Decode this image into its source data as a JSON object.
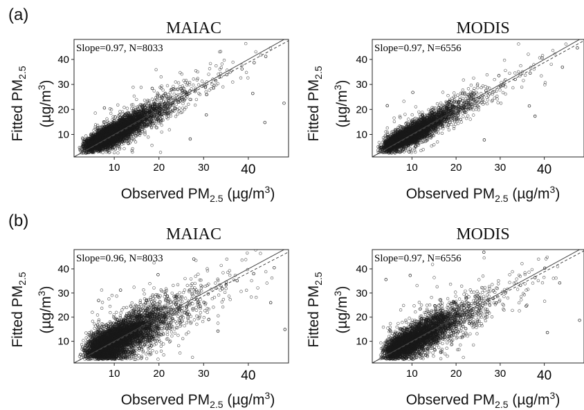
{
  "panel_labels": [
    "(a)",
    "(b)"
  ],
  "axis_text": {
    "x_main": "Observed PM",
    "x_sub": "2.5",
    "x_unit_open": "(µg",
    "x_unit_slash": "/",
    "x_unit_m": "m",
    "x_unit_exp": "3",
    "x_unit_close": ")",
    "y_main": "Fitted PM",
    "y_sub": "2.5",
    "y_unit_open": "(µg",
    "y_unit_slash": "/",
    "y_unit_m": "m",
    "y_unit_exp": "3",
    "y_unit_close": ")"
  },
  "chart_data": [
    {
      "type": "scatter",
      "panel": "(a)",
      "title": "MAIAC",
      "annotation": "Slope=0.97, N=8033",
      "xlim": [
        1,
        49
      ],
      "ylim": [
        1,
        48
      ],
      "xticks": [
        10,
        20,
        30,
        40
      ],
      "xtick_labels": [
        "10",
        "20",
        "30",
        "40"
      ],
      "yticks": [
        10,
        20,
        30,
        40
      ],
      "ytick_labels": [
        "10",
        "20",
        "30",
        "40"
      ],
      "n_points": 8033,
      "slope": 0.97,
      "lines": [
        {
          "style": "solid",
          "x": [
            1,
            49
          ],
          "y": [
            1,
            49
          ]
        },
        {
          "style": "dashed",
          "x": [
            1,
            49
          ],
          "y": [
            1,
            47.5
          ]
        }
      ],
      "points": [
        [
          3.2,
          5.1
        ],
        [
          4.5,
          6.8
        ],
        [
          5.8,
          7.2
        ],
        [
          6.4,
          8.9
        ],
        [
          7.1,
          6.5
        ],
        [
          8.3,
          9.4
        ],
        [
          9.6,
          10.8
        ],
        [
          10.2,
          8.7
        ],
        [
          11.5,
          12.1
        ],
        [
          12.8,
          11.4
        ],
        [
          14.0,
          13.6
        ],
        [
          15.3,
          14.9
        ],
        [
          16.1,
          15.2
        ],
        [
          17.4,
          16.8
        ],
        [
          18.9,
          18.1
        ],
        [
          20.2,
          19.7
        ],
        [
          21.6,
          20.3
        ],
        [
          23.1,
          22.6
        ],
        [
          24.8,
          23.4
        ],
        [
          26.3,
          25.9
        ],
        [
          28.1,
          27.2
        ],
        [
          30.4,
          28.8
        ],
        [
          32.7,
          31.5
        ],
        [
          35.2,
          33.9
        ],
        [
          38.6,
          36.2
        ],
        [
          41.3,
          38.7
        ],
        [
          43.9,
          41.2
        ],
        [
          30.6,
          17.8
        ],
        [
          43.7,
          14.8
        ],
        [
          48.0,
          22.5
        ],
        [
          18.5,
          28.4
        ],
        [
          7.8,
          20.6
        ],
        [
          27.0,
          8.2
        ],
        [
          41.0,
          26.4
        ]
      ],
      "cloud": {
        "slope": 0.97,
        "intercept": 1.4,
        "spread": 2.6,
        "x_mode": 9,
        "x_max": 47
      }
    },
    {
      "type": "scatter",
      "panel": "(a)",
      "title": "MODIS",
      "annotation": "Slope=0.97, N=6556",
      "xlim": [
        1,
        49
      ],
      "ylim": [
        1,
        48
      ],
      "xticks": [
        10,
        20,
        30,
        40
      ],
      "xtick_labels": [
        "10",
        "20",
        "30",
        "40"
      ],
      "yticks": [
        10,
        20,
        30,
        40
      ],
      "ytick_labels": [
        "10",
        "20",
        "30",
        "40"
      ],
      "n_points": 6556,
      "slope": 0.97,
      "lines": [
        {
          "style": "solid",
          "x": [
            1,
            49
          ],
          "y": [
            1,
            49
          ]
        },
        {
          "style": "dashed",
          "x": [
            1,
            49
          ],
          "y": [
            1,
            47.5
          ]
        }
      ],
      "points": [
        [
          3.0,
          4.8
        ],
        [
          4.9,
          6.2
        ],
        [
          6.1,
          7.5
        ],
        [
          7.4,
          8.1
        ],
        [
          8.8,
          9.9
        ],
        [
          10.3,
          10.6
        ],
        [
          11.7,
          12.3
        ],
        [
          13.1,
          13.0
        ],
        [
          14.6,
          14.5
        ],
        [
          16.2,
          15.8
        ],
        [
          17.8,
          17.4
        ],
        [
          19.5,
          18.6
        ],
        [
          21.3,
          20.8
        ],
        [
          23.0,
          22.1
        ],
        [
          25.2,
          24.7
        ],
        [
          27.6,
          26.3
        ],
        [
          30.1,
          29.2
        ],
        [
          33.4,
          32.0
        ],
        [
          36.8,
          34.5
        ],
        [
          39.5,
          40.6
        ],
        [
          44.1,
          36.9
        ],
        [
          47.5,
          44.6
        ],
        [
          26.4,
          7.8
        ],
        [
          36.6,
          21.4
        ],
        [
          37.9,
          17.3
        ],
        [
          10.2,
          26.8
        ],
        [
          4.4,
          21.5
        ],
        [
          29.7,
          33.5
        ]
      ],
      "cloud": {
        "slope": 0.97,
        "intercept": 1.2,
        "spread": 2.4,
        "x_mode": 9,
        "x_max": 46
      }
    },
    {
      "type": "scatter",
      "panel": "(b)",
      "title": "MAIAC",
      "annotation": "Slope=0.96, N=8033",
      "xlim": [
        1,
        49
      ],
      "ylim": [
        1,
        48
      ],
      "xticks": [
        10,
        20,
        30,
        40
      ],
      "xtick_labels": [
        "10",
        "20",
        "30",
        "40"
      ],
      "yticks": [
        10,
        20,
        30,
        40
      ],
      "ytick_labels": [
        "10",
        "20",
        "30",
        "40"
      ],
      "n_points": 8033,
      "slope": 0.96,
      "lines": [
        {
          "style": "solid",
          "x": [
            1,
            49
          ],
          "y": [
            1,
            49
          ]
        },
        {
          "style": "dashed",
          "x": [
            1,
            49
          ],
          "y": [
            1,
            47.0
          ]
        }
      ],
      "points": [
        [
          3.1,
          6.2
        ],
        [
          4.7,
          5.3
        ],
        [
          6.0,
          8.4
        ],
        [
          7.3,
          9.1
        ],
        [
          8.6,
          7.8
        ],
        [
          9.9,
          11.5
        ],
        [
          11.2,
          10.2
        ],
        [
          12.6,
          13.8
        ],
        [
          14.1,
          12.9
        ],
        [
          15.5,
          16.2
        ],
        [
          17.0,
          15.4
        ],
        [
          18.6,
          19.3
        ],
        [
          20.3,
          18.2
        ],
        [
          22.1,
          21.7
        ],
        [
          24.0,
          22.9
        ],
        [
          26.2,
          24.1
        ],
        [
          28.5,
          27.3
        ],
        [
          31.0,
          29.6
        ],
        [
          34.2,
          31.8
        ],
        [
          37.5,
          35.1
        ],
        [
          41.2,
          38.0
        ],
        [
          45.8,
          40.5
        ],
        [
          48.2,
          14.9
        ],
        [
          19.8,
          37.6
        ],
        [
          11.4,
          31.2
        ],
        [
          6.5,
          26.9
        ],
        [
          33.2,
          14.2
        ],
        [
          45.0,
          26.0
        ],
        [
          27.8,
          44.1
        ]
      ],
      "cloud": {
        "slope": 0.9,
        "intercept": 2.2,
        "spread": 4.3,
        "x_mode": 10,
        "x_max": 47
      }
    },
    {
      "type": "scatter",
      "panel": "(b)",
      "title": "MODIS",
      "annotation": "Slope=0.97, N=6556",
      "xlim": [
        1,
        49
      ],
      "ylim": [
        1,
        48
      ],
      "xticks": [
        10,
        20,
        30,
        40
      ],
      "xtick_labels": [
        "10",
        "20",
        "30",
        "40"
      ],
      "yticks": [
        10,
        20,
        30,
        40
      ],
      "ytick_labels": [
        "10",
        "20",
        "30",
        "40"
      ],
      "n_points": 6556,
      "slope": 0.97,
      "lines": [
        {
          "style": "solid",
          "x": [
            1,
            49
          ],
          "y": [
            1,
            49
          ]
        },
        {
          "style": "dashed",
          "x": [
            1,
            49
          ],
          "y": [
            1,
            47.5
          ]
        }
      ],
      "points": [
        [
          3.4,
          5.6
        ],
        [
          5.0,
          7.1
        ],
        [
          6.3,
          6.4
        ],
        [
          7.7,
          8.8
        ],
        [
          9.0,
          10.4
        ],
        [
          10.5,
          9.7
        ],
        [
          11.9,
          12.6
        ],
        [
          13.4,
          14.1
        ],
        [
          15.0,
          13.5
        ],
        [
          16.6,
          16.9
        ],
        [
          18.3,
          17.6
        ],
        [
          20.0,
          19.8
        ],
        [
          21.9,
          21.1
        ],
        [
          23.8,
          23.5
        ],
        [
          26.0,
          24.8
        ],
        [
          28.4,
          27.7
        ],
        [
          31.2,
          30.1
        ],
        [
          34.6,
          33.2
        ],
        [
          37.9,
          36.4
        ],
        [
          40.1,
          40.3
        ],
        [
          43.5,
          34.2
        ],
        [
          48.0,
          18.7
        ],
        [
          35.9,
          24.6
        ],
        [
          40.7,
          13.6
        ],
        [
          9.6,
          37.3
        ],
        [
          26.3,
          46.9
        ],
        [
          4.1,
          35.6
        ]
      ],
      "cloud": {
        "slope": 0.95,
        "intercept": 1.6,
        "spread": 3.7,
        "x_mode": 10,
        "x_max": 46
      }
    }
  ]
}
